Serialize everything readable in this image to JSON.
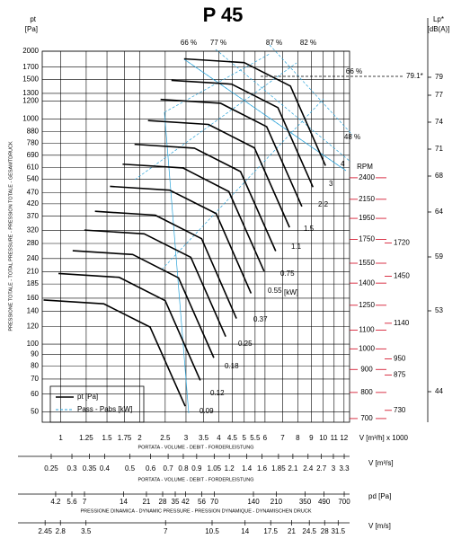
{
  "chart_data": {
    "type": "fan-curve",
    "title": "P 45",
    "y_label": "pt",
    "y_unit": "[Pa]",
    "y_axis_title": "PRESSIONE TOTALE - TOTAL PRESSURE - PRESSION TOTALE - GESAMTDRUCK",
    "log_y": true,
    "ylim": [
      45,
      2000
    ],
    "yticks": [
      2000,
      1700,
      1500,
      1300,
      1200,
      1000,
      880,
      780,
      690,
      610,
      540,
      470,
      420,
      370,
      320,
      280,
      240,
      210,
      185,
      160,
      140,
      120,
      100,
      90,
      80,
      70,
      60,
      50
    ],
    "x_label": "V [m³/h] x 1000",
    "x_axis_title": "PORTATA - VOLUME - DEBIT - FORDERLEISTUNG",
    "log_x": true,
    "xlim": [
      0.85,
      12.6
    ],
    "xticks": [
      1,
      1.25,
      1.5,
      1.75,
      2,
      2.5,
      3,
      3.5,
      4,
      4.5,
      5,
      5.5,
      6,
      7,
      8,
      9,
      10,
      11,
      12
    ],
    "grid": true,
    "series": [
      {
        "color": "#000000",
        "x": [
          2.95,
          5,
          7.5,
          10.2
        ],
        "values": [
          1850,
          1780,
          1400,
          620
        ]
      },
      {
        "color": "#000000",
        "x": [
          2.64,
          4.48,
          6.72,
          9.14
        ],
        "values": [
          1485,
          1428,
          1123,
          498
        ]
      },
      {
        "color": "#000000",
        "x": [
          2.4,
          4.06,
          6.09,
          8.29
        ],
        "values": [
          1221,
          1175,
          924,
          409
        ]
      },
      {
        "color": "#000000",
        "x": [
          2.15,
          3.65,
          5.47,
          7.44
        ],
        "values": [
          984,
          946,
          744,
          330
        ]
      },
      {
        "color": "#000000",
        "x": [
          1.91,
          3.23,
          4.84,
          6.59
        ],
        "values": [
          772,
          742,
          584,
          259
        ]
      },
      {
        "color": "#000000",
        "x": [
          1.72,
          2.92,
          4.37,
          5.95
        ],
        "values": [
          630,
          606,
          476,
          211
        ]
      },
      {
        "color": "#000000",
        "x": [
          1.54,
          2.6,
          3.91,
          5.31
        ],
        "values": [
          502,
          483,
          380,
          168
        ]
      },
      {
        "color": "#000000",
        "x": [
          1.35,
          2.29,
          3.44,
          4.67
        ],
        "values": [
          389,
          374,
          294,
          130
        ]
      },
      {
        "color": "#000000",
        "x": [
          1.23,
          2.08,
          3.13,
          4.25
        ],
        "values": [
          321,
          309,
          243,
          108
        ]
      },
      {
        "color": "#000000",
        "x": [
          1.11,
          1.88,
          2.81,
          3.83
        ],
        "values": [
          260,
          250,
          197,
          87
        ]
      },
      {
        "color": "#000000",
        "x": [
          0.98,
          1.67,
          2.5,
          3.4
        ],
        "values": [
          206,
          198,
          156,
          69
        ]
      },
      {
        "color": "#000000",
        "x": [
          0.86,
          1.46,
          2.19,
          2.98
        ],
        "values": [
          157,
          151,
          119,
          53
        ]
      }
    ],
    "rpm_axis": {
      "label": "RPM",
      "color": "#d0021b",
      "lim": [
        687,
        4587
      ],
      "ticks": [
        2400,
        2150,
        1950,
        1750,
        1550,
        1400,
        1250,
        1100,
        1000,
        900,
        800,
        700
      ]
    },
    "rpm_marks": {
      "ticks": [
        1720,
        1450,
        1140,
        950,
        875,
        730
      ]
    },
    "lp_axis": {
      "label": "Lp*",
      "unit": "[dB(A)]",
      "lim": [
        40.6,
        81.9
      ],
      "ticks": [
        79,
        77,
        74,
        71,
        68,
        64,
        59,
        53,
        44
      ]
    },
    "lp_annotation": {
      "value": 79.1,
      "label": "79.1*"
    },
    "power_unit": "[kW]",
    "power_labels": [
      0.09,
      0.12,
      0.18,
      0.25,
      0.37,
      0.55,
      0.75,
      1.1,
      1.5,
      2.2,
      3,
      4
    ],
    "efficiency_labels": [
      "66 %",
      "77 %",
      "87 %",
      "82 %",
      "66 %",
      "48 %"
    ],
    "secondary_axes": [
      {
        "label": "V [m³/s]",
        "title": "PORTATA - VOLUME - DEBIT - FORDERLEISTUNG",
        "lim": [
          0.231,
          3.46
        ],
        "ticks": [
          0.25,
          0.3,
          0.35,
          0.4,
          0.5,
          0.6,
          0.7,
          0.8,
          0.9,
          1.05,
          1.2,
          1.4,
          1.6,
          1.85,
          2.1,
          2.4,
          2.7,
          3,
          3.3
        ]
      },
      {
        "label": "pd [Pa]",
        "title": "PRESSIONE DINAMICA - DYNAMIC PRESSURE - PRESSION DYNAMIQUE - DYNAMISCHEN DRUCK",
        "lim": [
          3.31,
          770
        ],
        "ticks": [
          4.2,
          5.6,
          7,
          14,
          21,
          28,
          35,
          42,
          56,
          70,
          140,
          210,
          350,
          490,
          700
        ]
      },
      {
        "label": "V [m/s]",
        "lim": [
          2.39,
          34.8
        ],
        "ticks": [
          2.45,
          2.8,
          3.5,
          7,
          10.5,
          14,
          17.5,
          21,
          24.5,
          28,
          31.5
        ]
      }
    ],
    "legend": {
      "position": "lower left",
      "entries": [
        {
          "label": "pt [Pa]",
          "color": "#000000",
          "dash": false
        },
        {
          "label": "Pass - Pabs [kW]",
          "color": "#29a3d9",
          "dash": true
        }
      ]
    }
  }
}
